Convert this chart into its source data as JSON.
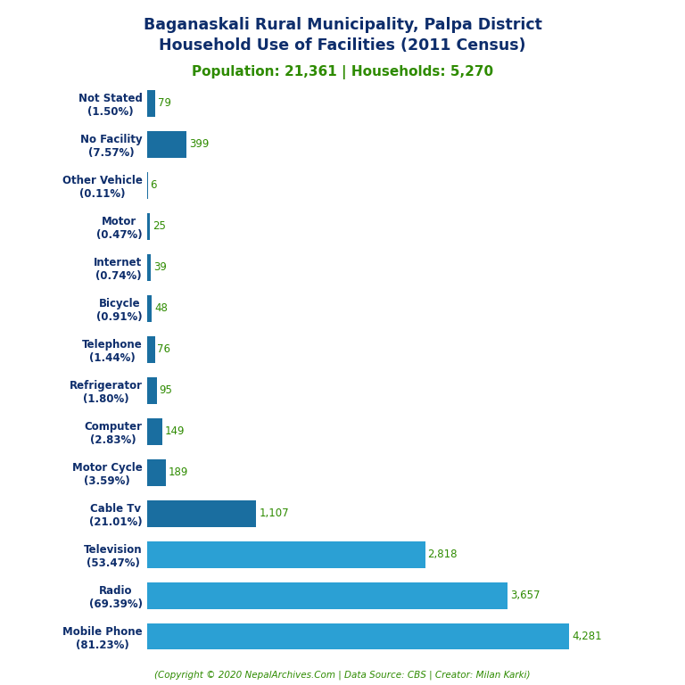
{
  "title_line1": "Baganaskali Rural Municipality, Palpa District",
  "title_line2": "Household Use of Facilities (2011 Census)",
  "subtitle": "Population: 21,361 | Households: 5,270",
  "footer": "(Copyright © 2020 NepalArchives.Com | Data Source: CBS | Creator: Milan Karki)",
  "categories": [
    "Not Stated\n(1.50%)",
    "No Facility\n(7.57%)",
    "Other Vehicle\n(0.11%)",
    "Motor\n(0.47%)",
    "Internet\n(0.74%)",
    "Bicycle\n(0.91%)",
    "Telephone\n(1.44%)",
    "Refrigerator\n(1.80%)",
    "Computer\n(2.83%)",
    "Motor Cycle\n(3.59%)",
    "Cable Tv\n(21.01%)",
    "Television\n(53.47%)",
    "Radio\n(69.39%)",
    "Mobile Phone\n(81.23%)"
  ],
  "values": [
    79,
    399,
    6,
    25,
    39,
    48,
    76,
    95,
    149,
    189,
    1107,
    2818,
    3657,
    4281
  ],
  "bar_colors": [
    "#1a6ea0",
    "#1a6ea0",
    "#1a6ea0",
    "#1a6ea0",
    "#1a6ea0",
    "#1a6ea0",
    "#1a6ea0",
    "#1a6ea0",
    "#1a6ea0",
    "#1a6ea0",
    "#1a6ea0",
    "#2ba0d4",
    "#2ba0d4",
    "#2ba0d4"
  ],
  "title_color": "#0d2d6b",
  "subtitle_color": "#2e8b00",
  "value_color": "#2e8b00",
  "footer_color": "#2e8b00",
  "background_color": "#ffffff",
  "xlim": [
    0,
    4900
  ]
}
